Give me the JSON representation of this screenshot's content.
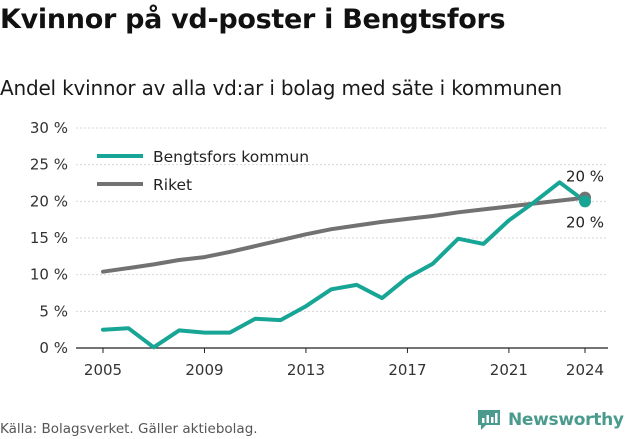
{
  "title": "Kvinnor på vd-poster i Bengtsfors",
  "subtitle": "Andel kvinnor av alla vd:ar i bolag med säte i kommunen",
  "source": "Källa: Bolagsverket. Gäller aktiebolag.",
  "brand": {
    "name": "Newsworthy",
    "icon": "newsworthy-logo-icon"
  },
  "chart_data": {
    "type": "line",
    "xlim": [
      2005,
      2024
    ],
    "ylim": [
      0,
      30
    ],
    "x_ticks": [
      2005,
      2009,
      2013,
      2017,
      2021,
      2024
    ],
    "y_ticks": [
      0,
      5,
      10,
      15,
      20,
      25,
      30
    ],
    "y_tick_labels": [
      "0 %",
      "5 %",
      "10 %",
      "15 %",
      "20 %",
      "25 %",
      "30 %"
    ],
    "grid": "horizontal",
    "legend_placement": "top-left",
    "x": [
      2005,
      2006,
      2007,
      2008,
      2009,
      2010,
      2011,
      2012,
      2013,
      2014,
      2015,
      2016,
      2017,
      2018,
      2019,
      2020,
      2021,
      2022,
      2023,
      2024
    ],
    "series": [
      {
        "name": "Bengtsfors kommun",
        "color": "#17a596",
        "values": [
          2.5,
          2.7,
          0.1,
          2.4,
          2.1,
          2.1,
          4.0,
          3.8,
          5.7,
          8.0,
          8.6,
          6.8,
          9.6,
          11.5,
          14.9,
          14.2,
          17.4,
          19.9,
          22.6,
          20.0
        ],
        "end_label": "20 %"
      },
      {
        "name": "Riket",
        "color": "#727272",
        "values": [
          10.4,
          10.9,
          11.4,
          12.0,
          12.4,
          13.1,
          13.9,
          14.7,
          15.5,
          16.2,
          16.7,
          17.2,
          17.6,
          18.0,
          18.5,
          18.9,
          19.3,
          19.7,
          20.1,
          20.5
        ],
        "end_label": "20 %"
      }
    ]
  }
}
